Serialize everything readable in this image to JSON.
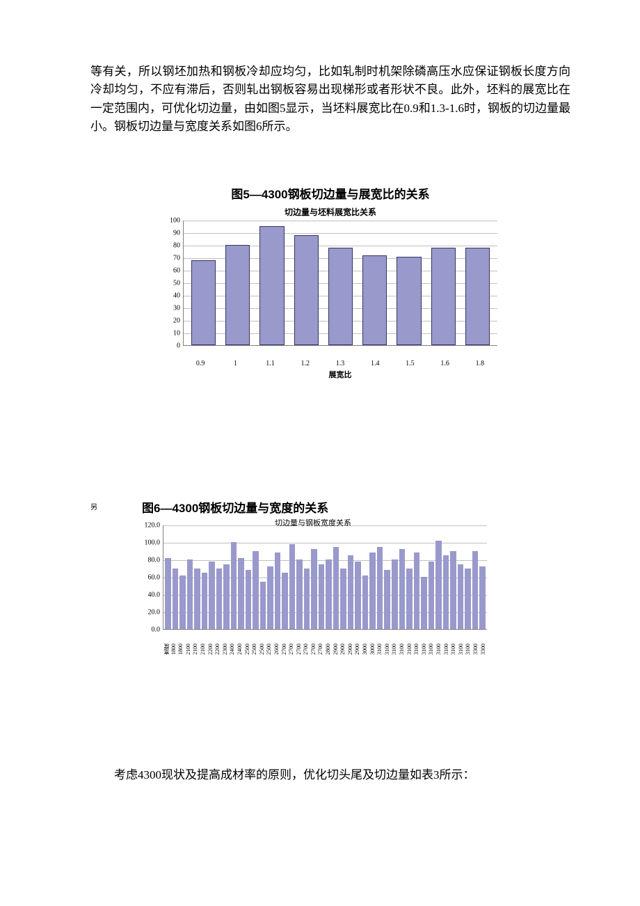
{
  "paragraph1": "等有关，所以钢坯加热和钢板冷却应均匀，比如轧制时机架除磷高压水应保证钢板长度方向冷却均匀，不应有滞后，否则轧出钢板容易出现梯形或者形状不良。此外，坯料的展宽比在一定范围内，可优化切边量，由如图5显示，当坯料展宽比在0.9和1.3-1.6时，钢板的切边量最小。钢板切边量与宽度关系如图6所示。",
  "fig5": {
    "caption": "图5—4300钢板切边量与展宽比的关系",
    "subtitle": "切边量与坯料展宽比关系",
    "type": "bar",
    "categories": [
      "0.9",
      "1",
      "1.1",
      "1.2",
      "1.3",
      "1.4",
      "1.5",
      "1.6",
      "1.8"
    ],
    "values": [
      68,
      80,
      95,
      88,
      78,
      72,
      71,
      78,
      78
    ],
    "ylim": [
      0,
      100
    ],
    "ytick_step": 10,
    "bar_fill": "#9999cc",
    "bar_border": "#333366",
    "grid_color": "#c0c0c0",
    "axis_color": "#808080",
    "xlabel": "展宽比",
    "label_fontsize": 11
  },
  "fig6": {
    "caption": "图6—4300钢板切边量与宽度的关系",
    "subtitle": "切边量与钢板宽度关系",
    "side_char": "另",
    "type": "bar",
    "ylim": [
      0,
      120
    ],
    "ytick_step": 20,
    "ytick_decimals": 1,
    "bar_fill": "#9999cc",
    "grid_color": "#c0c0c0",
    "axis_color": "#808080",
    "categories": [
      "宽度",
      "1800",
      "1800",
      "2100",
      "2100",
      "2100",
      "2200",
      "2200",
      "2300",
      "2400",
      "2400",
      "2500",
      "2500",
      "2500",
      "2500",
      "2600",
      "2700",
      "2700",
      "2700",
      "2700",
      "2700",
      "2700",
      "2800",
      "2900",
      "2900",
      "2900",
      "2900",
      "3000",
      "3000",
      "3100",
      "3100",
      "3100",
      "3100",
      "3100",
      "3100",
      "3100",
      "3100",
      "3100",
      "3100",
      "3100",
      "3100",
      "3100",
      "3300",
      "3300"
    ],
    "values": [
      82,
      70,
      62,
      80,
      70,
      65,
      78,
      70,
      75,
      100,
      82,
      68,
      90,
      55,
      72,
      88,
      65,
      98,
      80,
      70,
      92,
      75,
      80,
      95,
      70,
      85,
      78,
      62,
      88,
      95,
      68,
      80,
      92,
      70,
      88,
      60,
      78,
      102,
      85,
      90,
      75,
      70,
      90,
      72
    ]
  },
  "closing": "考虑4300现状及提高成材率的原则，优化切头尾及切边量如表3所示："
}
